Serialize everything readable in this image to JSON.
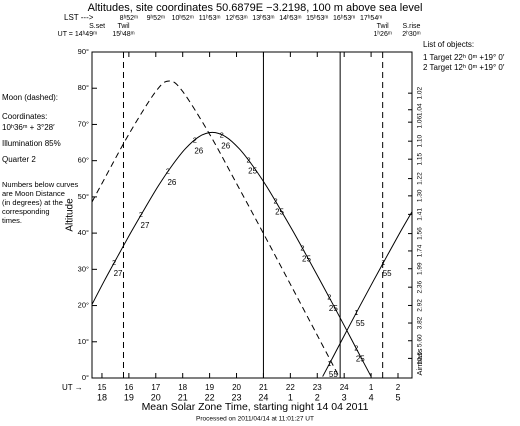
{
  "chart_data": {
    "type": "line",
    "title": "Altitudes, site coordinates  50.6879E  −3.2198,  100 m above sea level",
    "x_label": "Mean Solar Zone Time, starting night 14 04 2011",
    "y_label": "Altitude",
    "y2_label": "Airmass",
    "footer": "Processed on 2011/04/14 at 11:01:27 UT",
    "ut_label": "UT →",
    "lst_label": "LST --->",
    "xlim": [
      14.63,
      26.52
    ],
    "ylim": [
      0,
      90
    ],
    "xticks": [
      15,
      16,
      17,
      18,
      19,
      20,
      21,
      22,
      23,
      24,
      {
        "value": 25,
        "label": "1"
      },
      {
        "value": 26,
        "label": "2"
      }
    ],
    "xticks_local": [
      {
        "value": 15,
        "label": "18"
      },
      {
        "value": 16,
        "label": "19"
      },
      {
        "value": 17,
        "label": "20"
      },
      {
        "value": 18,
        "label": "21"
      },
      {
        "value": 19,
        "label": "22"
      },
      {
        "value": 20,
        "label": "23"
      },
      {
        "value": 21,
        "label": "24"
      },
      {
        "value": 22,
        "label": "1"
      },
      {
        "value": 23,
        "label": "2"
      },
      {
        "value": 24,
        "label": "3"
      },
      {
        "value": 25,
        "label": "4"
      },
      {
        "value": 26,
        "label": "5"
      }
    ],
    "lst_ticks": [
      {
        "value": 16,
        "label": "8ʰ52ᵐ"
      },
      {
        "value": 17,
        "label": "9ʰ52ᵐ"
      },
      {
        "value": 18,
        "label": "10ʰ52ᵐ"
      },
      {
        "value": 19,
        "label": "11ʰ53ᵐ"
      },
      {
        "value": 20,
        "label": "12ʰ53ᵐ"
      },
      {
        "value": 21,
        "label": "13ʰ53ᵐ"
      },
      {
        "value": 22,
        "label": "14ʰ53ᵐ"
      },
      {
        "value": 23,
        "label": "15ʰ53ᵐ"
      },
      {
        "value": 24,
        "label": "16ʰ53ᵐ"
      },
      {
        "value": 25,
        "label": "17ʰ54ᵐ"
      }
    ],
    "yticks": [
      {
        "value": 0,
        "label": "0°"
      },
      {
        "value": 10,
        "label": "10°"
      },
      {
        "value": 20,
        "label": "20°"
      },
      {
        "value": 30,
        "label": "30°"
      },
      {
        "value": 40,
        "label": "40°"
      },
      {
        "value": 50,
        "label": "50°"
      },
      {
        "value": 60,
        "label": "60°"
      },
      {
        "value": 70,
        "label": "70°"
      },
      {
        "value": 80,
        "label": "80°"
      },
      {
        "value": 90,
        "label": "90°"
      }
    ],
    "y2scale": "airmass",
    "y2ticks": [
      1.02,
      1.04,
      1.06,
      {
        "value": 1.1,
        "label": "1.10"
      },
      1.15,
      1.22,
      {
        "value": 1.3,
        "label": "1.30"
      },
      1.41,
      1.56,
      1.74,
      1.99,
      2.36,
      2.92,
      3.82,
      {
        "value": 5.6,
        "label": "5.60"
      },
      10.6
    ],
    "events": [
      {
        "label": "S.set",
        "time": "UT = 14ʰ49ᵐ",
        "x": 14.82
      },
      {
        "label": "Twil",
        "time": "15ʰ48ᵐ",
        "x": 15.8,
        "line": "dashed"
      },
      {
        "label": "Twil",
        "time": "1ʰ26ᵐ",
        "x": 25.43,
        "line": "dashed"
      },
      {
        "label": "S.rise",
        "time": "2ʰ30ᵐ",
        "x": 26.5
      }
    ],
    "solid_lines_x": [
      21,
      23.85
    ],
    "marker_color": "#d020d0",
    "distance_color": "#2030d0",
    "moon_info": {
      "title": "Moon (dashed):",
      "coord_label": "Coordinates:",
      "coords": "10ʰ36ᵐ + 3°28′",
      "illumination": "Illumination  85%",
      "quarter": "Quarter    2",
      "note": [
        "Numbers below curves",
        "are Moon Distance",
        "(in degrees) at the",
        "corresponding",
        "times."
      ]
    },
    "objects_title": "List of objects:",
    "series": [
      {
        "name": "1 Target 22ʰ 0ᵐ +19° 0′",
        "marker_label": "1",
        "color": "#000000",
        "x": [
          23.2,
          23.6,
          24.1,
          24.6,
          25.1,
          25.6,
          26.1,
          26.52
        ],
        "values": [
          0.4,
          6.0,
          13.1,
          20.1,
          27.0,
          33.8,
          40.5,
          45.9
        ],
        "marker_x": [
          23.45,
          24.45,
          25.45
        ],
        "moon_distance": [
          55,
          55,
          55
        ]
      },
      {
        "name": "2 Target 12ʰ 0ᵐ +19° 0′",
        "marker_label": "2",
        "color": "#000000",
        "x": [
          14.63,
          15.1,
          15.6,
          16.1,
          16.6,
          17.1,
          17.6,
          18.1,
          18.6,
          19.1,
          19.6,
          20.1,
          20.6,
          21.1,
          21.6,
          22.1,
          22.6,
          23.1,
          23.6,
          24.1,
          24.6,
          25.0
        ],
        "values": [
          20.3,
          27.0,
          33.8,
          40.5,
          46.9,
          53.1,
          58.6,
          63.3,
          66.6,
          67.8,
          66.6,
          63.3,
          58.6,
          53.1,
          46.9,
          40.5,
          33.8,
          27.0,
          20.1,
          13.1,
          6.0,
          0.4
        ],
        "marker_x": [
          15.45,
          16.45,
          17.45,
          18.45,
          19.45,
          20.45,
          21.45,
          22.45,
          23.45,
          24.45
        ],
        "moon_distance": [
          27,
          27,
          26,
          26,
          26,
          25,
          25,
          25,
          25,
          25
        ]
      },
      {
        "name": "Moon",
        "dashed": true,
        "color": "#000000",
        "x": [
          14.63,
          15,
          16,
          17,
          17.5,
          18,
          19,
          20,
          21,
          22,
          23,
          23.8
        ],
        "values": [
          48.6,
          53.7,
          67.3,
          79.1,
          82,
          79.1,
          67.3,
          53.7,
          39.9,
          25.9,
          11.8,
          0.5
        ]
      }
    ]
  }
}
